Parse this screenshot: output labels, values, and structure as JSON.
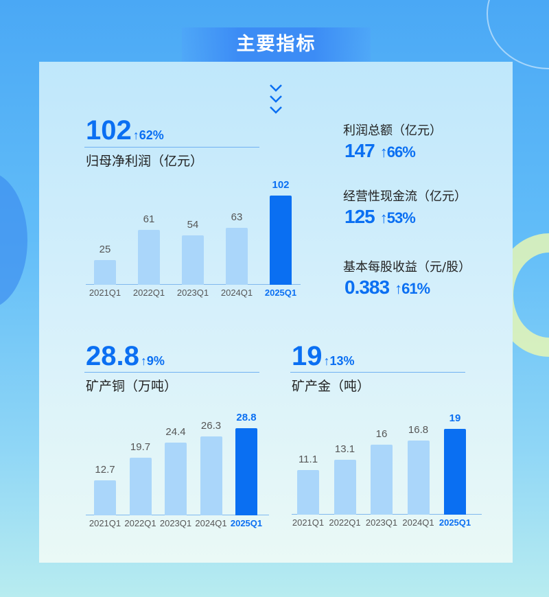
{
  "title": "主要指标",
  "colors": {
    "accent": "#0a6ff2",
    "bar": "#aad6fa"
  },
  "net_profit": {
    "value": "102",
    "growth": "62%",
    "label": "归母净利润（亿元）"
  },
  "kpis": [
    {
      "label": "利润总额（亿元）",
      "value": "147",
      "growth": "66%"
    },
    {
      "label": "经营性现金流（亿元）",
      "value": "125",
      "growth": "53%"
    },
    {
      "label": "基本每股收益（元/股）",
      "value": "0.383",
      "growth": "61%"
    }
  ],
  "copper": {
    "value": "28.8",
    "growth": "9%",
    "label": "矿产铜（万吨）"
  },
  "gold": {
    "value": "19",
    "growth": "13%",
    "label": "矿产金（吨）"
  },
  "chart_data": [
    {
      "type": "bar",
      "categories": [
        "2021Q1",
        "2022Q1",
        "2023Q1",
        "2024Q1",
        "2025Q1"
      ],
      "values": [
        25,
        61,
        54,
        63,
        102
      ],
      "labels": [
        "25",
        "61",
        "54",
        "63",
        "102"
      ],
      "highlight": "2025Q1",
      "ylim": [
        -5,
        102
      ],
      "grid": false
    },
    {
      "type": "bar",
      "categories": [
        "2021Q1",
        "2022Q1",
        "2023Q1",
        "2024Q1",
        "2025Q1"
      ],
      "values": [
        12.7,
        19.7,
        24.4,
        26.3,
        28.8
      ],
      "labels": [
        "12.7",
        "19.7",
        "24.4",
        "26.3",
        "28.8"
      ],
      "highlight": "2025Q1",
      "ylim": [
        1.9,
        28.8
      ],
      "grid": false
    },
    {
      "type": "bar",
      "categories": [
        "2021Q1",
        "2022Q1",
        "2023Q1",
        "2024Q1",
        "2025Q1"
      ],
      "values": [
        11.1,
        13.1,
        16,
        16.8,
        19
      ],
      "labels": [
        "11.1",
        "13.1",
        "16",
        "16.8",
        "19"
      ],
      "highlight": "2025Q1",
      "ylim": [
        2.5,
        19
      ],
      "grid": false
    }
  ]
}
